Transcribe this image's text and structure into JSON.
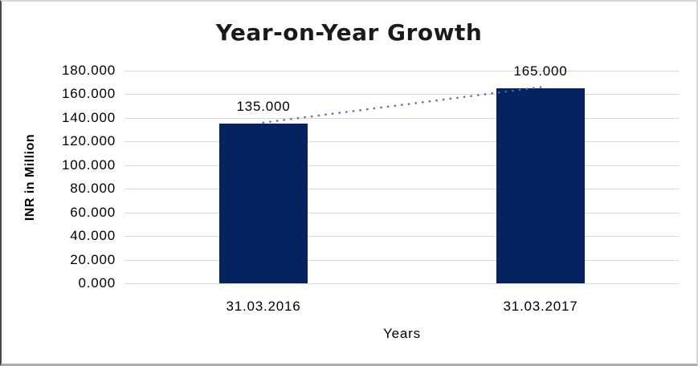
{
  "chart_data": {
    "type": "bar",
    "title": "Year-on-Year Growth",
    "xlabel": "Years",
    "ylabel": "INR in Million",
    "categories": [
      "31.03.2016",
      "31.03.2017"
    ],
    "values": [
      135,
      165
    ],
    "value_labels": [
      "135.000",
      "165.000"
    ],
    "series": [
      {
        "name": "INR in Million",
        "values": [
          135,
          165
        ]
      }
    ],
    "ylim": [
      0,
      180
    ],
    "y_tick_step": 20,
    "y_ticks": [
      "180.000",
      "160.000",
      "140.000",
      "120.000",
      "100.000",
      "80.000",
      "60.000",
      "40.000",
      "20.000",
      "0.000"
    ],
    "y_tick_values": [
      180,
      160,
      140,
      120,
      100,
      80,
      60,
      40,
      20,
      0
    ],
    "grid": true,
    "legend_position": "none",
    "colors": {
      "bar": "#05235E",
      "trendline": "#4472C4",
      "gridline": "#D9D9D9",
      "text": "#000000",
      "title_text": "#1A1A1A",
      "background": "#FFFFFF"
    },
    "trendline": {
      "type": "linear",
      "style": "dotted",
      "color": "#4472C4",
      "connects_values": [
        135,
        165
      ]
    }
  }
}
